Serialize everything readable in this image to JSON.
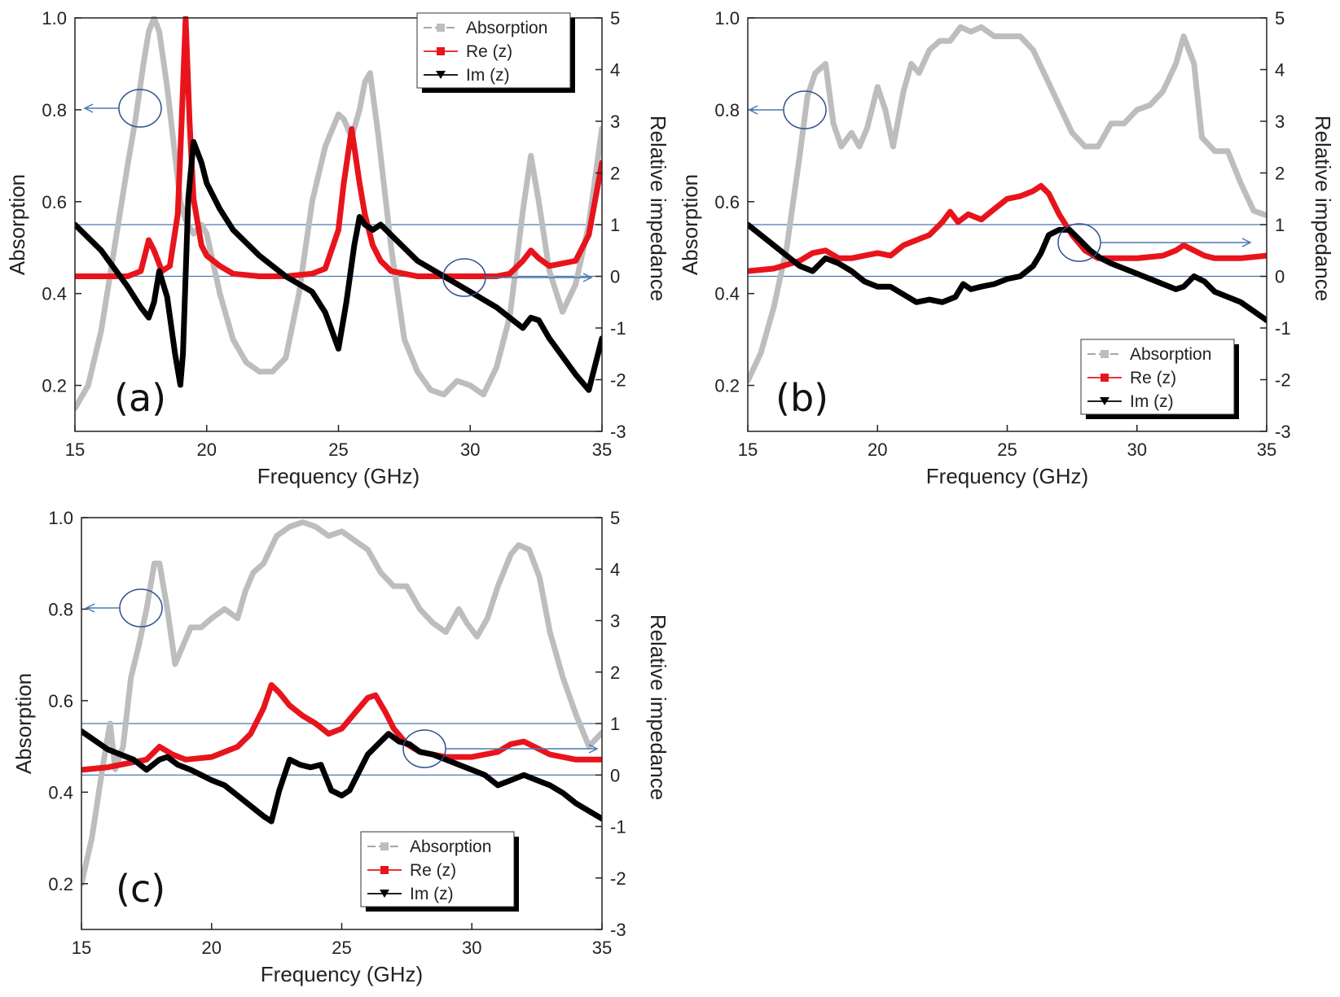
{
  "chart_data": [
    {
      "type": "line",
      "panel_label": "(a)",
      "xlabel": "Frequency (GHz)",
      "ylabel": "Absorption",
      "y2label": "Relative impedance",
      "xlim": [
        15,
        35
      ],
      "ylim": [
        0.1,
        1.0
      ],
      "y2lim": [
        -3,
        5
      ],
      "xticks": [
        "15",
        "20",
        "25",
        "30",
        "35"
      ],
      "yticks": [
        "0.2",
        "0.4",
        "0.6",
        "0.8",
        "1.0"
      ],
      "y2ticks": [
        "-3",
        "-2",
        "-1",
        "0",
        "1",
        "2",
        "3",
        "4",
        "5"
      ],
      "legend_position": "top-right",
      "reference_lines_y2": [
        0,
        1
      ],
      "series": [
        {
          "name": "Absorption",
          "axis": "left",
          "color": "#bdbdbd",
          "x": [
            15,
            15.5,
            16,
            16.5,
            17,
            17.3,
            17.6,
            17.8,
            18,
            18.2,
            18.5,
            18.8,
            19,
            19.2,
            19.5,
            19.8,
            20,
            20.5,
            21,
            21.5,
            22,
            22.5,
            23,
            23.5,
            24,
            24.5,
            25,
            25.2,
            25.5,
            25.8,
            26,
            26.2,
            26.5,
            27,
            27.5,
            28,
            28.5,
            29,
            29.5,
            30,
            30.5,
            31,
            31.5,
            32,
            32.3,
            32.6,
            33,
            33.5,
            34,
            34.5,
            35
          ],
          "y": [
            0.15,
            0.2,
            0.32,
            0.5,
            0.68,
            0.78,
            0.9,
            0.97,
            1.0,
            0.97,
            0.85,
            0.7,
            0.6,
            0.56,
            0.53,
            0.55,
            0.53,
            0.4,
            0.3,
            0.25,
            0.23,
            0.23,
            0.26,
            0.4,
            0.6,
            0.72,
            0.79,
            0.78,
            0.74,
            0.8,
            0.86,
            0.88,
            0.75,
            0.5,
            0.3,
            0.23,
            0.19,
            0.18,
            0.21,
            0.2,
            0.18,
            0.24,
            0.35,
            0.58,
            0.7,
            0.6,
            0.45,
            0.36,
            0.42,
            0.55,
            0.76
          ]
        },
        {
          "name": "Re (z)",
          "axis": "right",
          "color": "#e8141c",
          "x": [
            15,
            16,
            17,
            17.5,
            17.8,
            18,
            18.3,
            18.6,
            18.9,
            19.05,
            19.2,
            19.35,
            19.5,
            19.8,
            20,
            20.5,
            21,
            22,
            23,
            24,
            24.5,
            25,
            25.2,
            25.5,
            25.8,
            26,
            26.3,
            26.6,
            27,
            28,
            29,
            30,
            31,
            31.5,
            32,
            32.3,
            32.6,
            33,
            34,
            34.5,
            35
          ],
          "y": [
            0,
            0,
            0,
            0.1,
            0.7,
            0.5,
            0.1,
            0.2,
            1.2,
            3,
            5,
            3,
            1.5,
            0.6,
            0.4,
            0.2,
            0.05,
            0,
            0,
            0.05,
            0.15,
            0.9,
            1.8,
            2.85,
            1.8,
            1.2,
            0.6,
            0.3,
            0.1,
            0,
            0,
            0,
            0,
            0.05,
            0.3,
            0.5,
            0.35,
            0.2,
            0.3,
            0.8,
            2.2
          ]
        },
        {
          "name": "Im (z)",
          "axis": "right",
          "color": "#000000",
          "x": [
            15,
            16,
            17,
            17.5,
            17.8,
            18,
            18.2,
            18.5,
            18.8,
            19,
            19.1,
            19.3,
            19.5,
            19.8,
            20,
            20.5,
            21,
            22,
            23,
            24,
            24.5,
            25,
            25.3,
            25.6,
            25.8,
            26,
            26.3,
            26.6,
            27,
            28,
            29,
            30,
            31,
            32,
            32.3,
            32.6,
            33,
            34,
            34.5,
            35
          ],
          "y": [
            1,
            0.5,
            -0.2,
            -0.6,
            -0.8,
            -0.5,
            0.1,
            -0.4,
            -1.5,
            -2.1,
            -1.5,
            1.5,
            2.6,
            2.2,
            1.8,
            1.3,
            0.9,
            0.4,
            0,
            -0.3,
            -0.7,
            -1.4,
            -0.5,
            0.6,
            1.15,
            1.0,
            0.9,
            1.0,
            0.8,
            0.3,
            0,
            -0.3,
            -0.6,
            -1.0,
            -0.8,
            -0.85,
            -1.2,
            -1.9,
            -2.2,
            -1.2
          ]
        }
      ]
    },
    {
      "type": "line",
      "panel_label": "(b)",
      "xlabel": "Frequency (GHz)",
      "ylabel": "Absorption",
      "y2label": "Relative impedance",
      "xlim": [
        15,
        35
      ],
      "ylim": [
        0.1,
        1.0
      ],
      "y2lim": [
        -3,
        5
      ],
      "xticks": [
        "15",
        "20",
        "25",
        "30",
        "35"
      ],
      "yticks": [
        "0.2",
        "0.4",
        "0.6",
        "0.8",
        "1.0"
      ],
      "y2ticks": [
        "-3",
        "-2",
        "-1",
        "0",
        "1",
        "2",
        "3",
        "4",
        "5"
      ],
      "legend_position": "bottom-right",
      "reference_lines_y2": [
        0,
        1
      ],
      "series": [
        {
          "name": "Absorption",
          "axis": "left",
          "color": "#bdbdbd",
          "x": [
            15,
            15.5,
            16,
            16.5,
            17,
            17.3,
            17.6,
            18,
            18.3,
            18.6,
            19,
            19.3,
            19.6,
            20,
            20.3,
            20.6,
            21,
            21.3,
            21.6,
            22,
            22.4,
            22.8,
            23.2,
            23.6,
            24,
            24.5,
            25,
            25.5,
            26,
            26.5,
            27,
            27.5,
            28,
            28.5,
            29,
            29.5,
            30,
            30.5,
            31,
            31.5,
            31.8,
            32.2,
            32.5,
            33,
            33.5,
            34,
            34.5,
            35
          ],
          "y": [
            0.21,
            0.27,
            0.37,
            0.5,
            0.7,
            0.83,
            0.88,
            0.9,
            0.77,
            0.72,
            0.75,
            0.72,
            0.76,
            0.85,
            0.8,
            0.72,
            0.84,
            0.9,
            0.88,
            0.93,
            0.95,
            0.95,
            0.98,
            0.97,
            0.98,
            0.96,
            0.96,
            0.96,
            0.93,
            0.87,
            0.81,
            0.75,
            0.72,
            0.72,
            0.77,
            0.77,
            0.8,
            0.81,
            0.84,
            0.9,
            0.96,
            0.9,
            0.74,
            0.71,
            0.71,
            0.64,
            0.58,
            0.57
          ]
        },
        {
          "name": "Re (z)",
          "axis": "right",
          "color": "#e8141c",
          "x": [
            15,
            16,
            17,
            17.5,
            18,
            18.5,
            19,
            19.5,
            20,
            20.5,
            21,
            21.5,
            22,
            22.5,
            22.8,
            23.1,
            23.5,
            24,
            24.5,
            25,
            25.5,
            26,
            26.3,
            26.6,
            27,
            27.5,
            28,
            28.5,
            29,
            30,
            31,
            31.5,
            31.8,
            32.2,
            32.6,
            33,
            34,
            35
          ],
          "y": [
            0.1,
            0.15,
            0.3,
            0.45,
            0.5,
            0.35,
            0.35,
            0.4,
            0.45,
            0.4,
            0.6,
            0.7,
            0.8,
            1.05,
            1.25,
            1.05,
            1.2,
            1.1,
            1.3,
            1.5,
            1.55,
            1.65,
            1.75,
            1.6,
            1.2,
            0.8,
            0.5,
            0.35,
            0.35,
            0.35,
            0.4,
            0.5,
            0.6,
            0.5,
            0.4,
            0.35,
            0.35,
            0.4
          ]
        },
        {
          "name": "Im (z)",
          "axis": "right",
          "color": "#000000",
          "x": [
            15,
            16,
            17,
            17.5,
            18,
            18.5,
            19,
            19.5,
            20,
            20.5,
            21,
            21.5,
            22,
            22.5,
            23,
            23.3,
            23.6,
            24,
            24.5,
            25,
            25.5,
            26,
            26.3,
            26.6,
            27,
            27.4,
            27.8,
            28.2,
            28.6,
            29,
            30,
            31,
            31.5,
            31.8,
            32.2,
            32.6,
            33,
            34,
            35
          ],
          "y": [
            1,
            0.6,
            0.2,
            0.1,
            0.35,
            0.25,
            0.1,
            -0.1,
            -0.2,
            -0.2,
            -0.35,
            -0.5,
            -0.45,
            -0.5,
            -0.4,
            -0.15,
            -0.25,
            -0.2,
            -0.15,
            -0.05,
            0,
            0.2,
            0.45,
            0.8,
            0.9,
            0.9,
            0.7,
            0.5,
            0.35,
            0.25,
            0.05,
            -0.15,
            -0.25,
            -0.2,
            0,
            -0.1,
            -0.3,
            -0.5,
            -0.85
          ]
        }
      ]
    },
    {
      "type": "line",
      "panel_label": "(c)",
      "xlabel": "Frequency (GHz)",
      "ylabel": "Absorption",
      "y2label": "Relative impedance",
      "xlim": [
        15,
        35
      ],
      "ylim": [
        0.1,
        1.0
      ],
      "y2lim": [
        -3,
        5
      ],
      "xticks": [
        "15",
        "20",
        "25",
        "30",
        "35"
      ],
      "yticks": [
        "0.2",
        "0.4",
        "0.6",
        "0.8",
        "1.0"
      ],
      "y2ticks": [
        "-3",
        "-2",
        "-1",
        "0",
        "1",
        "2",
        "3",
        "4",
        "5"
      ],
      "legend_position": "bottom-center",
      "reference_lines_y2": [
        0,
        1
      ],
      "series": [
        {
          "name": "Absorption",
          "axis": "left",
          "color": "#bdbdbd",
          "x": [
            15,
            15.4,
            15.8,
            16.1,
            16.3,
            16.6,
            16.9,
            17.2,
            17.5,
            17.8,
            18,
            18.3,
            18.6,
            18.9,
            19.2,
            19.6,
            20,
            20.5,
            21,
            21.3,
            21.6,
            22,
            22.5,
            23,
            23.5,
            24,
            24.5,
            25,
            25.5,
            26,
            26.5,
            27,
            27.5,
            28,
            28.5,
            29,
            29.5,
            29.8,
            30.2,
            30.6,
            31,
            31.5,
            31.8,
            32.2,
            32.6,
            33,
            33.5,
            34,
            34.5,
            35
          ],
          "y": [
            0.2,
            0.3,
            0.45,
            0.55,
            0.45,
            0.5,
            0.65,
            0.72,
            0.8,
            0.9,
            0.9,
            0.8,
            0.68,
            0.72,
            0.76,
            0.76,
            0.78,
            0.8,
            0.78,
            0.84,
            0.88,
            0.9,
            0.96,
            0.98,
            0.99,
            0.98,
            0.96,
            0.97,
            0.95,
            0.93,
            0.88,
            0.85,
            0.85,
            0.8,
            0.77,
            0.75,
            0.8,
            0.77,
            0.74,
            0.78,
            0.85,
            0.92,
            0.94,
            0.93,
            0.87,
            0.75,
            0.65,
            0.57,
            0.5,
            0.53
          ]
        },
        {
          "name": "Re (z)",
          "axis": "right",
          "color": "#e8141c",
          "x": [
            15,
            16,
            17,
            17.5,
            18,
            18.5,
            19,
            20,
            21,
            21.5,
            22,
            22.3,
            22.6,
            23,
            23.5,
            24,
            24.5,
            25,
            25.5,
            26,
            26.3,
            26.7,
            27,
            27.5,
            28,
            28.5,
            29,
            30,
            30.5,
            31,
            31.5,
            32,
            33,
            34,
            35
          ],
          "y": [
            0.1,
            0.15,
            0.25,
            0.3,
            0.55,
            0.4,
            0.3,
            0.35,
            0.55,
            0.8,
            1.3,
            1.75,
            1.6,
            1.35,
            1.15,
            1.0,
            0.8,
            0.9,
            1.2,
            1.5,
            1.55,
            1.2,
            0.9,
            0.6,
            0.45,
            0.4,
            0.35,
            0.35,
            0.4,
            0.45,
            0.6,
            0.65,
            0.4,
            0.3,
            0.3
          ]
        },
        {
          "name": "Im (z)",
          "axis": "right",
          "color": "#000000",
          "x": [
            15,
            16,
            16.5,
            17,
            17.5,
            18,
            18.3,
            18.7,
            19.2,
            20,
            20.5,
            21,
            21.5,
            22,
            22.3,
            22.6,
            23,
            23.4,
            23.8,
            24.2,
            24.6,
            25,
            25.3,
            25.7,
            26,
            26.4,
            26.8,
            27.2,
            27.6,
            28,
            28.5,
            29,
            29.5,
            30,
            30.5,
            31,
            31.5,
            32,
            32.5,
            33,
            33.5,
            34,
            35
          ],
          "y": [
            0.85,
            0.5,
            0.4,
            0.3,
            0.1,
            0.3,
            0.35,
            0.2,
            0.1,
            -0.1,
            -0.2,
            -0.4,
            -0.6,
            -0.8,
            -0.9,
            -0.3,
            0.3,
            0.2,
            0.15,
            0.2,
            -0.3,
            -0.4,
            -0.3,
            0.1,
            0.4,
            0.6,
            0.8,
            0.65,
            0.6,
            0.45,
            0.4,
            0.3,
            0.2,
            0.1,
            0,
            -0.2,
            -0.1,
            0,
            -0.1,
            -0.2,
            -0.35,
            -0.55,
            -0.85
          ]
        }
      ]
    }
  ]
}
